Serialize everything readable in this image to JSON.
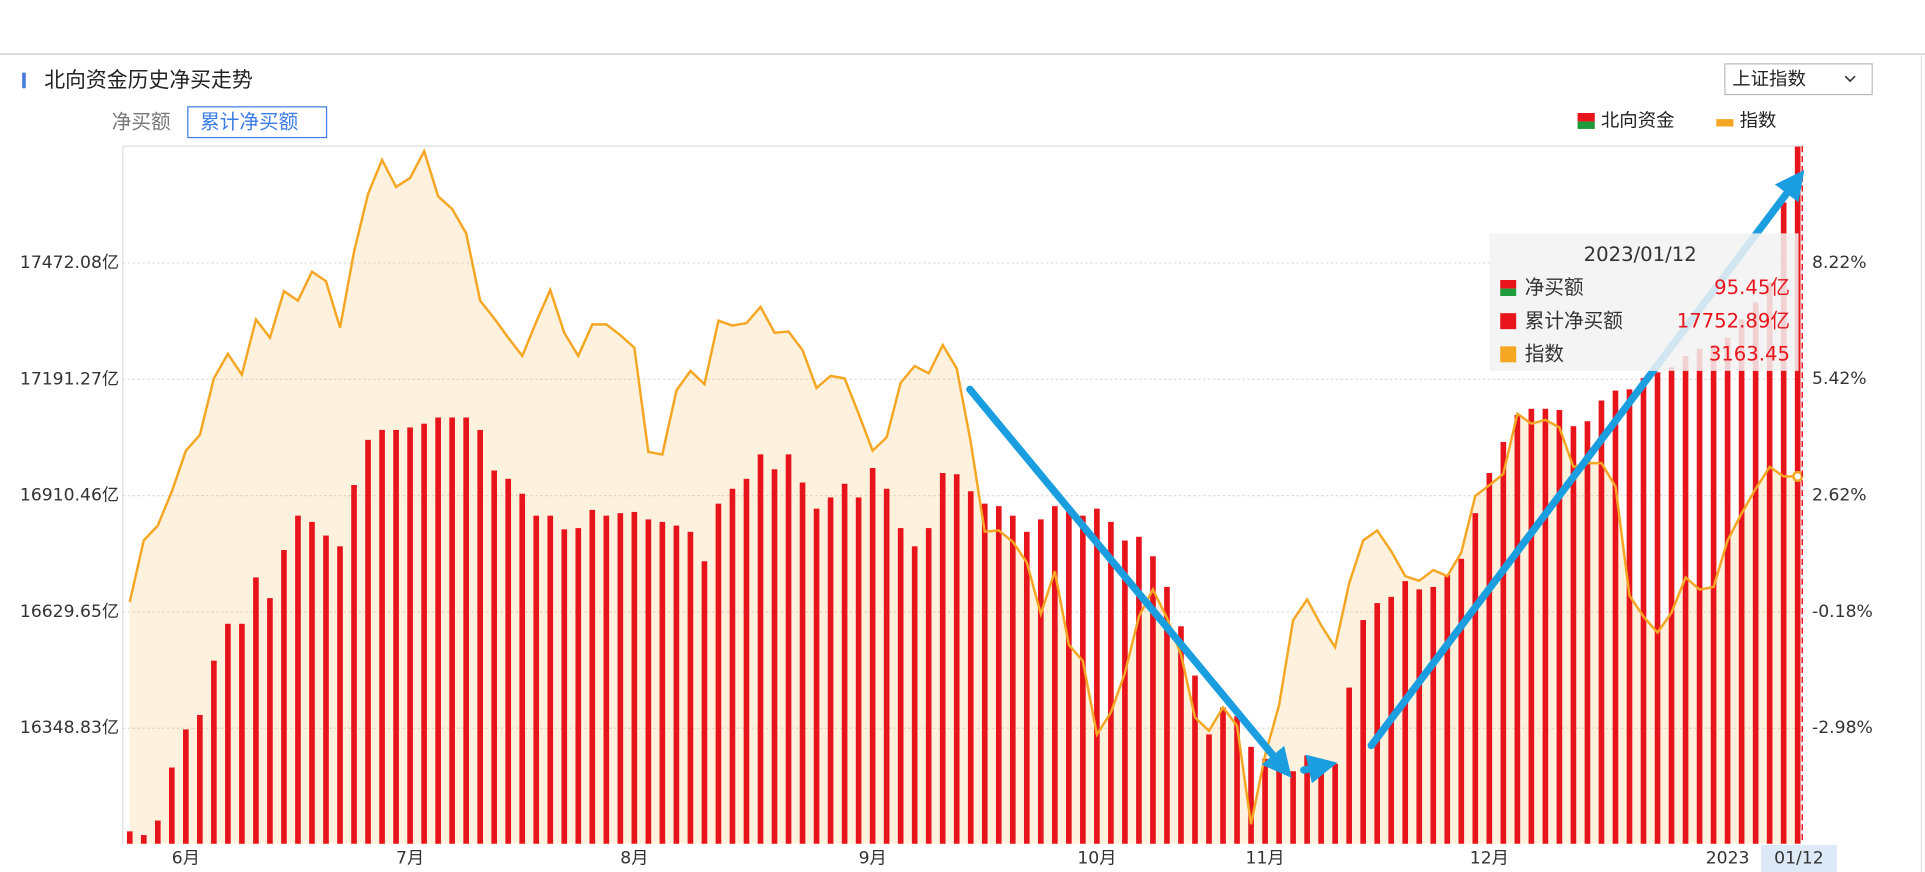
{
  "chart_data": {
    "type": "bar",
    "title": "北向资金历史净买走势",
    "tabs": [
      "净买额",
      "累计净买额"
    ],
    "dropdown": "上证指数",
    "categories": [
      null,
      null,
      null,
      null,
      "6月",
      null,
      null,
      null,
      null,
      null,
      null,
      null,
      null,
      null,
      null,
      null,
      null,
      null,
      null,
      null,
      "7月",
      null,
      null,
      null,
      null,
      null,
      null,
      null,
      null,
      null,
      null,
      null,
      null,
      null,
      null,
      null,
      "8月",
      null,
      null,
      null,
      null,
      null,
      null,
      null,
      null,
      null,
      null,
      null,
      null,
      null,
      null,
      null,
      null,
      "9月",
      null,
      null,
      null,
      null,
      null,
      null,
      null,
      null,
      null,
      null,
      null,
      null,
      null,
      null,
      null,
      "10月",
      null,
      null,
      null,
      null,
      null,
      null,
      null,
      null,
      null,
      null,
      null,
      "11月",
      null,
      null,
      null,
      null,
      null,
      null,
      null,
      null,
      null,
      null,
      null,
      null,
      null,
      null,
      null,
      "12月",
      null,
      null,
      null,
      null,
      null,
      null,
      null,
      null,
      null,
      null,
      null,
      null,
      null,
      null,
      null,
      null,
      "2023",
      null,
      null,
      null,
      null,
      "01/12"
    ],
    "series": [
      {
        "name": "北向资金",
        "color": "#e8141b",
        "values": [
          16100,
          16091,
          16126,
          16254,
          16346,
          16381,
          16512,
          16601,
          16601,
          16713,
          16663,
          16779,
          16862,
          16847,
          16814,
          16788,
          16936,
          17045,
          17069,
          17069,
          17075,
          17084,
          17099,
          17099,
          17099,
          17069,
          16971,
          16951,
          16915,
          16862,
          16862,
          16829,
          16832,
          16876,
          16862,
          16868,
          16871,
          16853,
          16847,
          16838,
          16823,
          16752,
          16891,
          16927,
          16951,
          17010,
          16974,
          17010,
          16942,
          16879,
          16906,
          16939,
          16906,
          16977,
          16927,
          16832,
          16788,
          16832,
          16965,
          16962,
          16921,
          16891,
          16885,
          16862,
          16823,
          16853,
          16885,
          16873,
          16862,
          16879,
          16847,
          16802,
          16811,
          16764,
          16690,
          16595,
          16476,
          16334,
          16399,
          16378,
          16304,
          16275,
          16260,
          16245,
          16283,
          16260,
          16263,
          16447,
          16610,
          16651,
          16666,
          16704,
          16684,
          16690,
          16719,
          16758,
          16868,
          16965,
          17040,
          17105,
          17120,
          17120,
          17117,
          17078,
          17090,
          17140,
          17164,
          17167,
          17194,
          17208,
          17220,
          17247,
          17265,
          17274,
          17292,
          17336,
          17377,
          17425,
          17618,
          17752.89
        ]
      },
      {
        "name": "指数",
        "color": "#f5a623",
        "axis": "y2",
        "values": [
          0.06,
          1.54,
          1.9,
          2.72,
          3.7,
          4.08,
          5.44,
          6.03,
          5.53,
          6.86,
          6.42,
          7.54,
          7.31,
          8.01,
          7.78,
          6.66,
          8.49,
          9.88,
          10.7,
          10.05,
          10.26,
          10.91,
          9.82,
          9.52,
          8.93,
          7.31,
          6.89,
          6.42,
          5.98,
          6.8,
          7.57,
          6.54,
          5.98,
          6.74,
          6.74,
          6.48,
          6.18,
          3.67,
          3.61,
          5.15,
          5.62,
          5.3,
          6.83,
          6.71,
          6.77,
          7.16,
          6.54,
          6.57,
          6.12,
          5.21,
          5.5,
          5.44,
          4.59,
          3.7,
          4.02,
          5.33,
          5.74,
          5.56,
          6.24,
          5.68,
          3.91,
          1.75,
          1.78,
          1.51,
          1.01,
          -0.23,
          0.8,
          -0.97,
          -1.36,
          -3.13,
          -2.6,
          -1.65,
          -0.29,
          0.36,
          -0.32,
          -1.21,
          -2.72,
          -3.04,
          -2.48,
          -2.92,
          -5.29,
          -3.63,
          -2.42,
          -0.38,
          0.12,
          -0.5,
          -1.03,
          0.51,
          1.54,
          1.78,
          1.28,
          0.68,
          0.57,
          0.83,
          0.68,
          1.25,
          2.61,
          2.87,
          3.14,
          4.59,
          4.35,
          4.44,
          4.26,
          3.31,
          3.4,
          3.4,
          2.84,
          0.21,
          -0.29,
          -0.68,
          -0.2,
          0.65,
          0.36,
          0.42,
          1.54,
          2.19,
          2.78,
          3.31,
          3.08,
          3.08
        ]
      }
    ],
    "ylim": [
      16070,
      17754
    ],
    "yticks": [
      {
        "value": 16348.83,
        "label": "16348.83亿"
      },
      {
        "value": 16629.65,
        "label": "16629.65亿"
      },
      {
        "value": 16910.46,
        "label": "16910.46亿"
      },
      {
        "value": 17191.27,
        "label": "17191.27亿"
      },
      {
        "value": 17472.08,
        "label": "17472.08亿"
      }
    ],
    "y2lim": [
      -5.76,
      11.03
    ],
    "y2ticks": [
      {
        "value": -2.98,
        "label": "-2.98%"
      },
      {
        "value": -0.18,
        "label": "-0.18%"
      },
      {
        "value": 2.62,
        "label": "2.62%"
      },
      {
        "value": 5.42,
        "label": "5.42%"
      },
      {
        "value": 8.22,
        "label": "8.22%"
      }
    ],
    "grid": true,
    "legend": "top-right",
    "tooltip": {
      "date": "2023/01/12",
      "rows": [
        {
          "label": "净买额",
          "value": "95.45亿"
        },
        {
          "label": "累计净买额",
          "value": "17752.89亿"
        },
        {
          "label": "指数",
          "value": "3163.45"
        }
      ]
    }
  }
}
